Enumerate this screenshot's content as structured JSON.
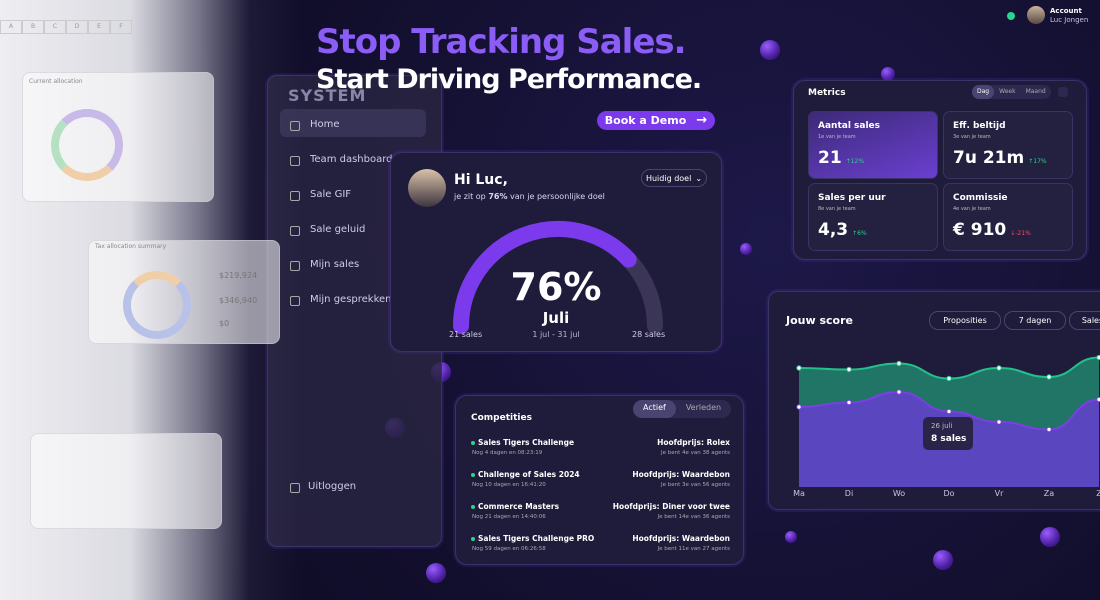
{
  "header": {
    "title_line1": "Stop Tracking Sales.",
    "title_line2": "Start Driving Performance.",
    "cta": "Book a Demo"
  },
  "account": {
    "label": "Account",
    "name": "Luc Jongen"
  },
  "sidebar": {
    "logo": "SYSTEM",
    "items": [
      "Home",
      "Team dashboard",
      "Sale GIF",
      "Sale geluid",
      "Mijn sales",
      "Mijn gesprekken"
    ],
    "active": 0,
    "logout": "Uitloggen"
  },
  "background": {
    "columns": [
      "A",
      "B",
      "C",
      "D",
      "E",
      "F"
    ],
    "panels": [
      "Current allocation",
      "Tax allocation summary"
    ],
    "amounts": [
      "$219,924",
      "$346,940",
      "$0"
    ]
  },
  "goal": {
    "greeting": "Hi Luc,",
    "message": [
      "je zit op ",
      "76%",
      " van je persoonlijke doel"
    ],
    "dropdown": "Huidig doel",
    "gauge": {
      "value": 76,
      "value_label": "76%",
      "range": [
        0,
        100
      ]
    },
    "month": "Juli",
    "period": "1 jul - 31 jul",
    "start": "21 sales",
    "end": "28 sales"
  },
  "metrics": {
    "title": "Metrics",
    "tabs": [
      "Dag",
      "Week",
      "Maand"
    ],
    "active_tab": 0,
    "cards": [
      {
        "title": "Aantal sales",
        "sub": "1e van je team",
        "value": "21",
        "change": "12%",
        "trend": "up"
      },
      {
        "title": "Eff. beltijd",
        "sub": "3e van je team",
        "value": "7u 21m",
        "change": "17%",
        "trend": "up"
      },
      {
        "title": "Sales per uur",
        "sub": "8e van je team",
        "value": "4,3",
        "change": "6%",
        "trend": "up"
      },
      {
        "title": "Commissie",
        "sub": "4e van je team",
        "value": "€ 910",
        "change": "-21%",
        "trend": "down"
      }
    ]
  },
  "score": {
    "type": "line",
    "title": "Jouw score",
    "filters": [
      "Proposities",
      "7 dagen",
      "Sales"
    ],
    "categories": [
      "Ma",
      "Di",
      "Wo",
      "Do",
      "Vr",
      "Za",
      "Z"
    ],
    "series": [
      {
        "color": "#22c08a",
        "values": [
          76,
          75,
          79,
          69,
          76,
          70,
          83
        ]
      },
      {
        "color": "#7b3fe4",
        "values": [
          50,
          53,
          60,
          47,
          40,
          35,
          55
        ]
      }
    ],
    "ylim": [
      0,
      100
    ],
    "tooltip": {
      "series": 1,
      "index": 3,
      "date": "26 juli",
      "text": "8 sales"
    }
  },
  "competitions": {
    "title": "Competities",
    "tabs": [
      "Actief",
      "Verleden"
    ],
    "active_tab": 0,
    "rows": [
      {
        "name": "Sales Tigers Challenge",
        "time": "Nog 4 dagen en 08:23:19",
        "prize": "Hoofdprijs: Rolex",
        "rank": "Je bent 4e van 38 agents"
      },
      {
        "name": "Challenge of Sales 2024",
        "time": "Nog 10 dagen en 16:41:20",
        "prize": "Hoofdprijs: Waardebon",
        "rank": "Je bent 3e van 56 agents"
      },
      {
        "name": "Commerce Masters",
        "time": "Nog 21 dagen en 14:40:06",
        "prize": "Hoofdprijs: Diner voor twee",
        "rank": "Je bent 14e van 36 agents"
      },
      {
        "name": "Sales Tigers Challenge PRO",
        "time": "Nog 59 dagen en 06:26:58",
        "prize": "Hoofdprijs: Waardebon",
        "rank": "Je bent 11e van 27 agents"
      }
    ]
  }
}
